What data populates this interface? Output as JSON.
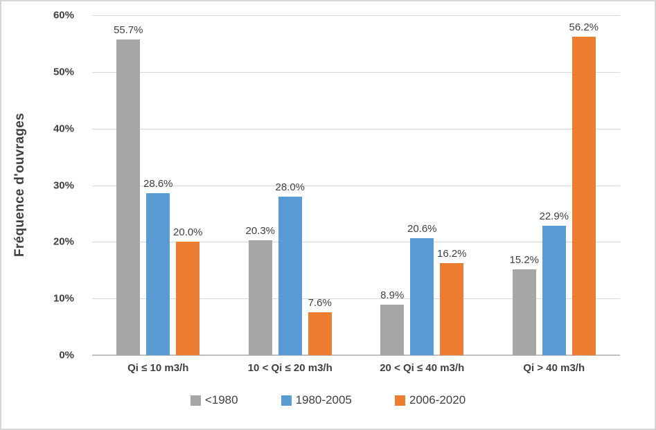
{
  "chart_data": {
    "type": "bar",
    "title": "",
    "xlabel": "",
    "ylabel": "Fréquence d'ouvrages",
    "categories": [
      "Qi ≤ 10 m3/h",
      "10 < Qi ≤ 20 m3/h",
      "20 < Qi ≤ 40 m3/h",
      "Qi > 40 m3/h"
    ],
    "series": [
      {
        "name": "<1980",
        "color": "#a6a6a6",
        "values": [
          55.7,
          20.3,
          8.9,
          15.2
        ],
        "labels": [
          "55.7%",
          "20.3%",
          "8.9%",
          "15.2%"
        ]
      },
      {
        "name": "1980-2005",
        "color": "#5b9bd5",
        "values": [
          28.6,
          28.0,
          20.6,
          22.9
        ],
        "labels": [
          "28.6%",
          "28.0%",
          "20.6%",
          "22.9%"
        ]
      },
      {
        "name": "2006-2020",
        "color": "#ed7d31",
        "values": [
          20.0,
          7.6,
          16.2,
          56.2
        ],
        "labels": [
          "20.0%",
          "7.6%",
          "16.2%",
          "56.2%"
        ]
      }
    ],
    "y_axis": {
      "min": 0,
      "max": 60,
      "step": 10,
      "tick_labels": [
        "0%",
        "10%",
        "20%",
        "30%",
        "40%",
        "50%",
        "60%"
      ]
    },
    "grid": true,
    "gridline_color": "#d9d9d9",
    "axis_line_color": "#bfbfbf",
    "text_color": "#404040",
    "legend_position": "bottom"
  }
}
